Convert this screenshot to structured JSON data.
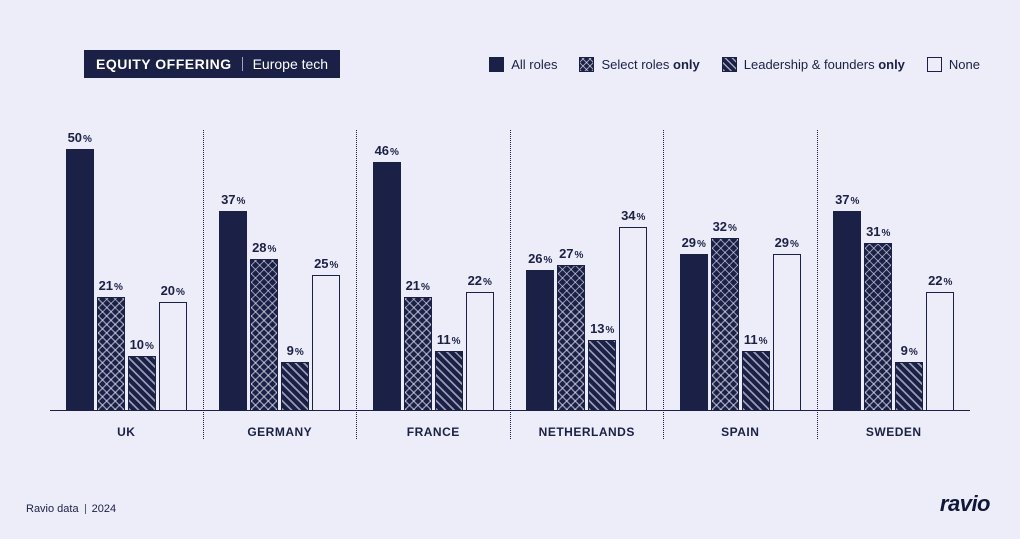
{
  "colors": {
    "background": "#edecf9",
    "ink": "#1a2046",
    "bar_border": "#1a2046"
  },
  "header": {
    "title_main": "EQUITY OFFERING",
    "title_sub": "Europe tech"
  },
  "legend": [
    {
      "key": "all",
      "label_prefix": "All roles",
      "label_bold": "",
      "pattern": "solid"
    },
    {
      "key": "select",
      "label_prefix": "Select roles ",
      "label_bold": "only",
      "pattern": "cross"
    },
    {
      "key": "leaders",
      "label_prefix": "Leadership & founders ",
      "label_bold": "only",
      "pattern": "diag"
    },
    {
      "key": "none",
      "label_prefix": "None",
      "label_bold": "",
      "pattern": "none"
    }
  ],
  "chart": {
    "type": "grouped-bar",
    "y_max_percent": 52,
    "series_order": [
      "all",
      "select",
      "leaders",
      "none"
    ],
    "series_patterns": {
      "all": "solid",
      "select": "cross",
      "leaders": "diag",
      "none": "none"
    },
    "label_fontsize_pt": 13,
    "axis_label_fontsize_pt": 12,
    "groups": [
      {
        "label": "UK",
        "values": {
          "all": 50,
          "select": 21,
          "leaders": 10,
          "none": 20
        }
      },
      {
        "label": "GERMANY",
        "values": {
          "all": 37,
          "select": 28,
          "leaders": 9,
          "none": 25
        }
      },
      {
        "label": "FRANCE",
        "values": {
          "all": 46,
          "select": 21,
          "leaders": 11,
          "none": 22
        }
      },
      {
        "label": "NETHERLANDS",
        "values": {
          "all": 26,
          "select": 27,
          "leaders": 13,
          "none": 34
        }
      },
      {
        "label": "SPAIN",
        "values": {
          "all": 29,
          "select": 32,
          "leaders": 11,
          "none": 29
        }
      },
      {
        "label": "SWEDEN",
        "values": {
          "all": 37,
          "select": 31,
          "leaders": 9,
          "none": 22
        }
      }
    ]
  },
  "footer": {
    "source_label": "Ravio data",
    "year": "2024",
    "brand": "ravio"
  }
}
